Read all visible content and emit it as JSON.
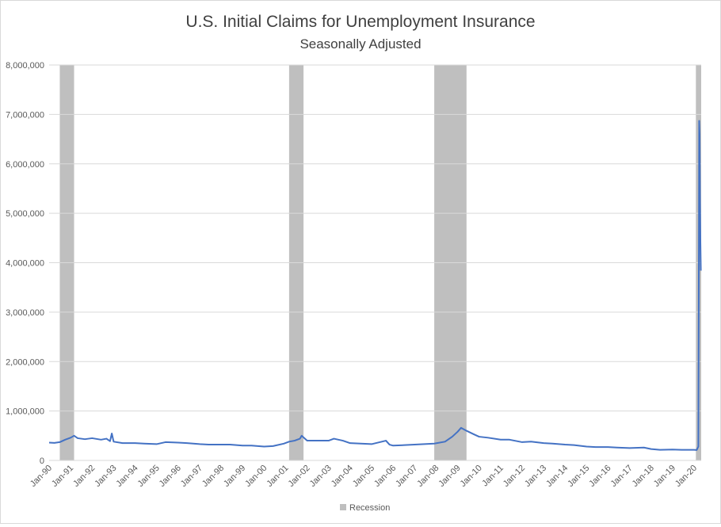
{
  "chart_data": {
    "type": "line",
    "title": "U.S. Initial Claims for Unemployment Insurance",
    "subtitle": "Seasonally Adjusted",
    "xlabel": "",
    "ylabel": "",
    "ylim": [
      0,
      8000000
    ],
    "yticks": [
      0,
      1000000,
      2000000,
      3000000,
      4000000,
      5000000,
      6000000,
      7000000,
      8000000
    ],
    "ytick_labels": [
      "0",
      "1,000,000",
      "2,000,000",
      "3,000,000",
      "4,000,000",
      "5,000,000",
      "6,000,000",
      "7,000,000",
      "8,000,000"
    ],
    "xlim": [
      "1990-01-01",
      "2020-05-01"
    ],
    "xtick_labels": [
      "Jan-90",
      "Jan-91",
      "Jan-92",
      "Jan-93",
      "Jan-94",
      "Jan-95",
      "Jan-96",
      "Jan-97",
      "Jan-98",
      "Jan-99",
      "Jan-00",
      "Jan-01",
      "Jan-02",
      "Jan-03",
      "Jan-04",
      "Jan-05",
      "Jan-06",
      "Jan-07",
      "Jan-08",
      "Jan-09",
      "Jan-10",
      "Jan-11",
      "Jan-12",
      "Jan-13",
      "Jan-14",
      "Jan-15",
      "Jan-16",
      "Jan-17",
      "Jan-18",
      "Jan-19",
      "Jan-20"
    ],
    "grid": true,
    "legend_position": "bottom",
    "legend_items": [
      {
        "label": "Recession",
        "color": "#bfbfbf"
      }
    ],
    "recessions": [
      {
        "start": "1990-07-01",
        "end": "1991-03-01"
      },
      {
        "start": "2001-03-01",
        "end": "2001-11-01"
      },
      {
        "start": "2007-12-01",
        "end": "2009-06-01"
      },
      {
        "start": "2020-02-01",
        "end": "2020-05-01"
      }
    ],
    "series": [
      {
        "color": "#4472c4",
        "points": [
          [
            "1990-01-01",
            360000
          ],
          [
            "1990-04-01",
            355000
          ],
          [
            "1990-07-01",
            370000
          ],
          [
            "1990-10-01",
            420000
          ],
          [
            "1991-01-01",
            460000
          ],
          [
            "1991-03-01",
            500000
          ],
          [
            "1991-05-01",
            450000
          ],
          [
            "1991-09-01",
            430000
          ],
          [
            "1992-01-01",
            450000
          ],
          [
            "1992-06-01",
            420000
          ],
          [
            "1992-09-01",
            440000
          ],
          [
            "1992-11-01",
            390000
          ],
          [
            "1992-12-01",
            545000
          ],
          [
            "1993-01-01",
            380000
          ],
          [
            "1993-06-01",
            350000
          ],
          [
            "1994-01-01",
            350000
          ],
          [
            "1994-06-01",
            340000
          ],
          [
            "1995-01-01",
            330000
          ],
          [
            "1995-06-01",
            370000
          ],
          [
            "1996-01-01",
            360000
          ],
          [
            "1996-06-01",
            350000
          ],
          [
            "1997-01-01",
            330000
          ],
          [
            "1997-06-01",
            320000
          ],
          [
            "1998-01-01",
            320000
          ],
          [
            "1998-06-01",
            320000
          ],
          [
            "1999-01-01",
            300000
          ],
          [
            "1999-06-01",
            300000
          ],
          [
            "2000-01-01",
            280000
          ],
          [
            "2000-06-01",
            290000
          ],
          [
            "2000-12-01",
            340000
          ],
          [
            "2001-03-01",
            380000
          ],
          [
            "2001-06-01",
            400000
          ],
          [
            "2001-09-01",
            440000
          ],
          [
            "2001-10-01",
            500000
          ],
          [
            "2002-01-01",
            400000
          ],
          [
            "2002-06-01",
            400000
          ],
          [
            "2003-01-01",
            400000
          ],
          [
            "2003-04-01",
            440000
          ],
          [
            "2003-09-01",
            400000
          ],
          [
            "2004-01-01",
            350000
          ],
          [
            "2005-01-01",
            330000
          ],
          [
            "2005-09-01",
            400000
          ],
          [
            "2005-11-01",
            320000
          ],
          [
            "2006-01-01",
            300000
          ],
          [
            "2007-01-01",
            320000
          ],
          [
            "2007-12-01",
            340000
          ],
          [
            "2008-06-01",
            380000
          ],
          [
            "2008-10-01",
            480000
          ],
          [
            "2009-01-01",
            580000
          ],
          [
            "2009-03-01",
            660000
          ],
          [
            "2009-06-01",
            600000
          ],
          [
            "2009-10-01",
            530000
          ],
          [
            "2010-01-01",
            480000
          ],
          [
            "2010-06-01",
            460000
          ],
          [
            "2011-01-01",
            420000
          ],
          [
            "2011-06-01",
            420000
          ],
          [
            "2012-01-01",
            370000
          ],
          [
            "2012-06-01",
            380000
          ],
          [
            "2013-01-01",
            350000
          ],
          [
            "2013-06-01",
            340000
          ],
          [
            "2014-01-01",
            320000
          ],
          [
            "2014-06-01",
            310000
          ],
          [
            "2015-01-01",
            280000
          ],
          [
            "2015-06-01",
            270000
          ],
          [
            "2016-01-01",
            270000
          ],
          [
            "2016-06-01",
            260000
          ],
          [
            "2017-01-01",
            250000
          ],
          [
            "2017-09-01",
            260000
          ],
          [
            "2018-01-01",
            230000
          ],
          [
            "2018-06-01",
            215000
          ],
          [
            "2019-01-01",
            220000
          ],
          [
            "2019-06-01",
            215000
          ],
          [
            "2020-01-01",
            215000
          ],
          [
            "2020-02-15",
            211000
          ],
          [
            "2020-03-14",
            282000
          ],
          [
            "2020-03-21",
            3300000
          ],
          [
            "2020-03-28",
            6870000
          ],
          [
            "2020-04-04",
            6600000
          ],
          [
            "2020-04-11",
            5200000
          ],
          [
            "2020-04-18",
            4400000
          ],
          [
            "2020-04-25",
            3840000
          ]
        ]
      }
    ]
  }
}
